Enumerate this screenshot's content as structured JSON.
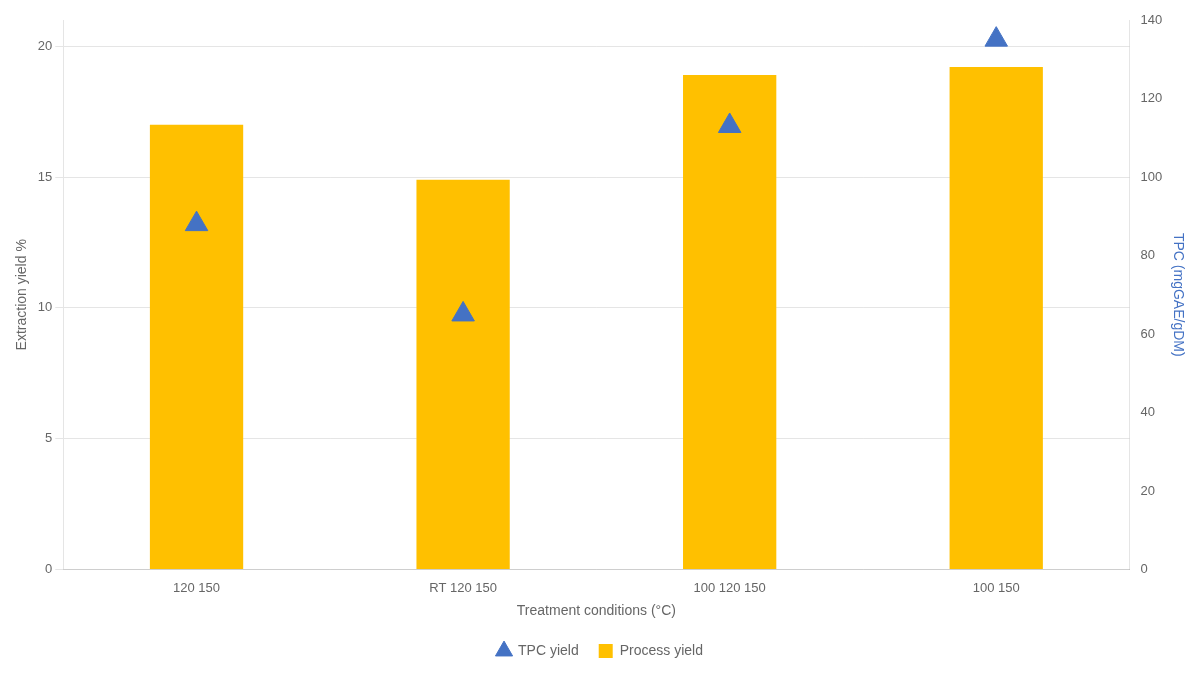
{
  "chart_data": {
    "type": "bar",
    "xlabel": "Treatment conditions (°C)",
    "ylabel": "Extraction yield %",
    "y2label": "TPC (mgGAE/gDM)",
    "categories": [
      "120 150",
      "RT 120 150",
      "100 120 150",
      "100 150"
    ],
    "series": [
      {
        "name": "Process yield",
        "type": "bar",
        "color": "#FFC000",
        "values": [
          17.0,
          14.9,
          18.9,
          19.2
        ]
      },
      {
        "name": "TPC yield",
        "type": "scatter",
        "marker": "triangle",
        "color": "#4472C4",
        "axis": "y2",
        "values": [
          88,
          65,
          113,
          135
        ]
      }
    ],
    "ylim": [
      0,
      21.0
    ],
    "yticks": [
      0,
      5,
      10,
      15,
      20
    ],
    "y2lim": [
      0,
      140
    ],
    "y2ticks": [
      0,
      20,
      40,
      60,
      80,
      100,
      120,
      140
    ],
    "grid": true,
    "legend": "bottom"
  }
}
